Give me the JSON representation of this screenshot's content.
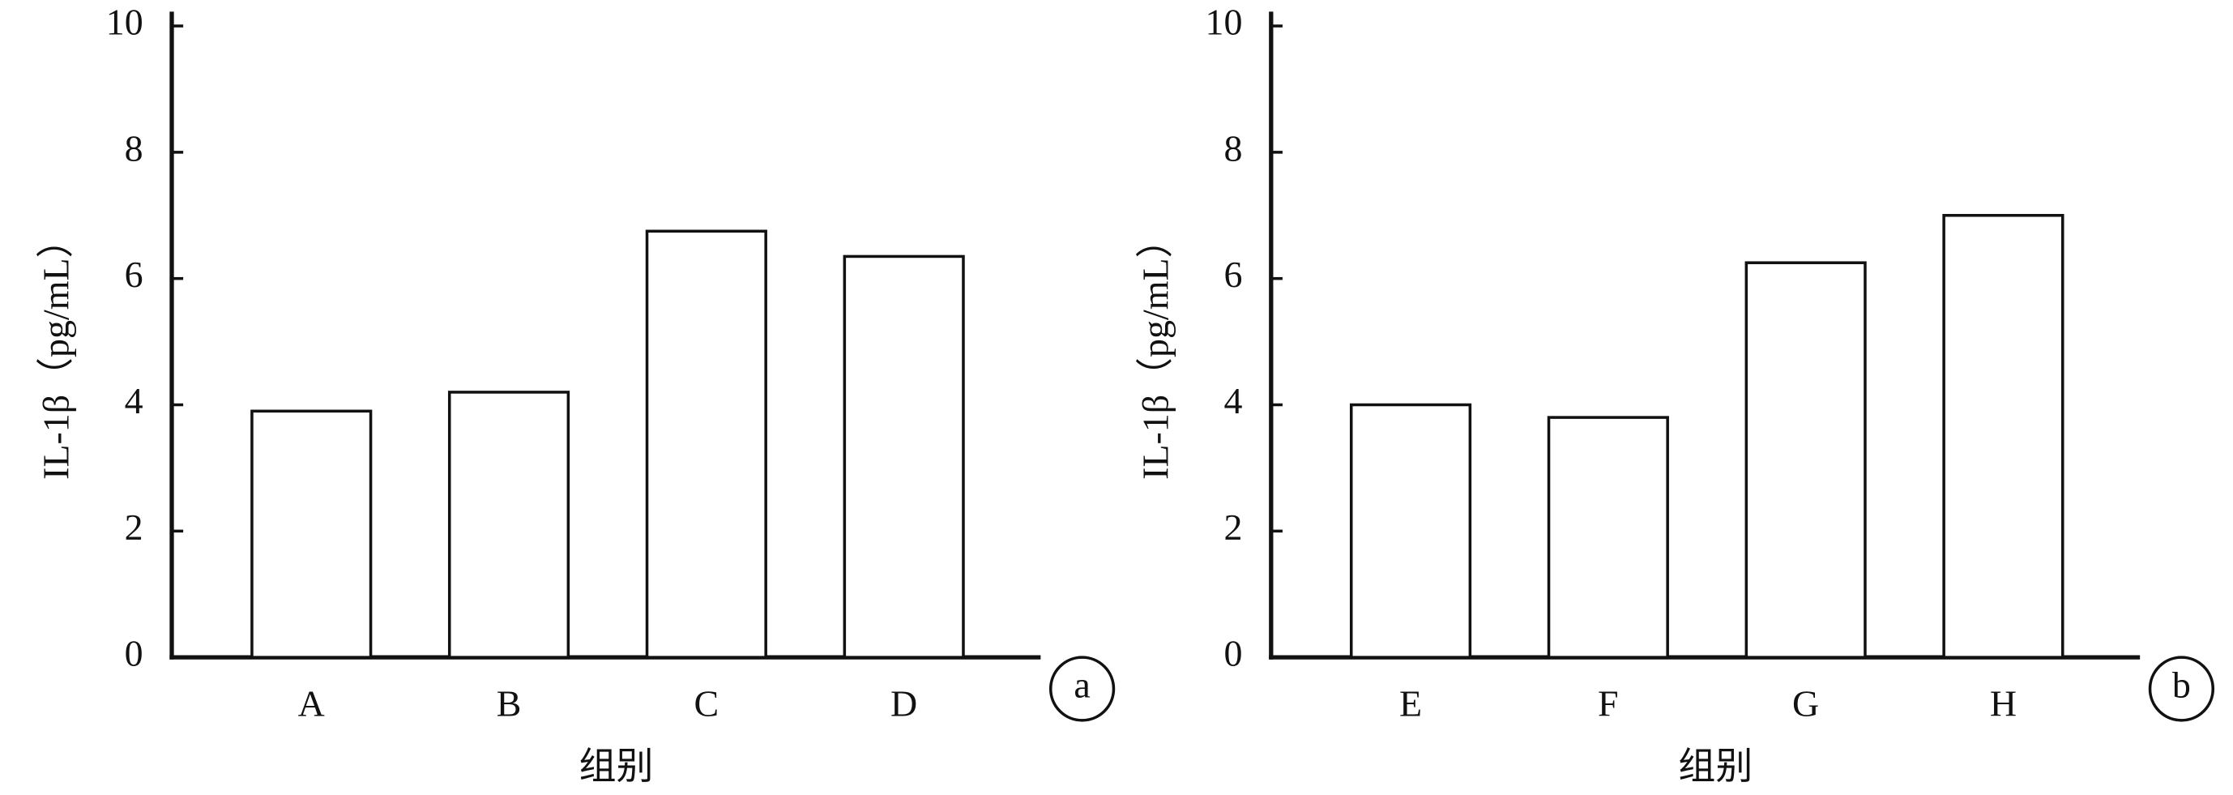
{
  "chart_data": [
    {
      "type": "bar",
      "panel_label": "a",
      "y_label": "IL-1β（pg/mL）",
      "x_label": "组别",
      "categories": [
        "A",
        "B",
        "C",
        "D"
      ],
      "values": [
        3.9,
        4.2,
        6.75,
        6.35
      ],
      "color": "#ffffff",
      "ylim": [
        0,
        10
      ],
      "yticks": [
        0,
        2,
        4,
        6,
        8,
        10
      ]
    },
    {
      "type": "bar",
      "panel_label": "b",
      "y_label": "IL-1β（pg/mL）",
      "x_label": "组别",
      "categories": [
        "E",
        "F",
        "G",
        "H"
      ],
      "values": [
        4.0,
        3.8,
        6.25,
        7.0
      ],
      "color": "#ffffff",
      "ylim": [
        0,
        10
      ],
      "yticks": [
        0,
        2,
        4,
        6,
        8,
        10
      ]
    }
  ]
}
